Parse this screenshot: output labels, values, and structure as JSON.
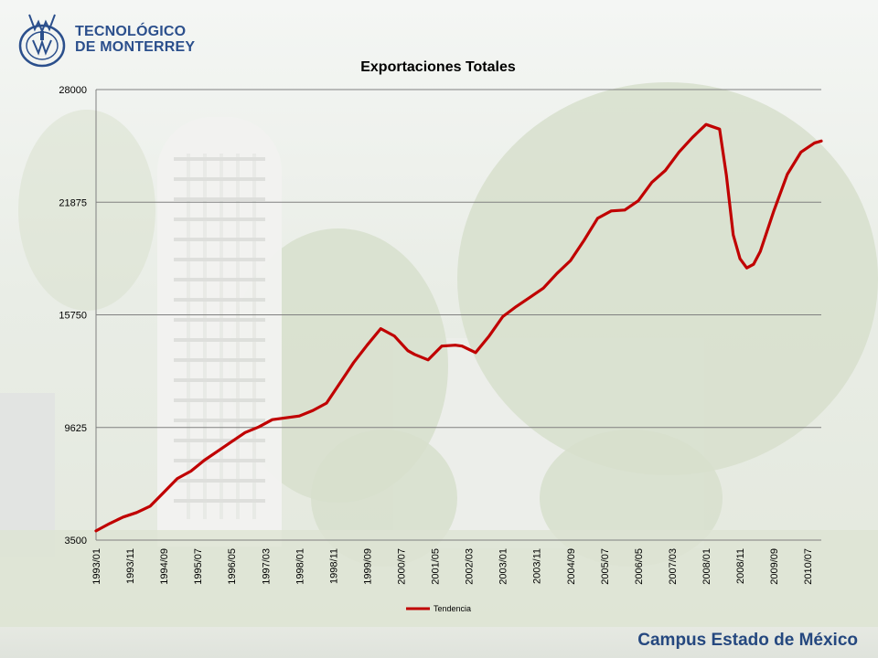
{
  "header": {
    "logo_line1": "TECNOLÓGICO",
    "logo_line2": "DE MONTERREY"
  },
  "footer": {
    "campus": "Campus Estado de México"
  },
  "colors": {
    "series": "#c00000",
    "grid": "#808080",
    "brand": "#2b4f8c"
  },
  "chart_data": {
    "type": "line",
    "title": "Exportaciones Totales",
    "xlabel": "",
    "ylabel": "",
    "ylim": [
      3500,
      28000
    ],
    "yticks": [
      3500,
      9625,
      15750,
      21875,
      28000
    ],
    "x_tick_labels": [
      "1993/01",
      "1993/11",
      "1994/09",
      "1995/07",
      "1996/05",
      "1997/03",
      "1998/01",
      "1998/11",
      "1999/09",
      "2000/07",
      "2001/05",
      "2002/03",
      "2003/01",
      "2003/11",
      "2004/09",
      "2005/07",
      "2006/05",
      "2007/03",
      "2008/01",
      "2008/11",
      "2009/09",
      "2010/07"
    ],
    "x_range": [
      "1993-01",
      "2010-11"
    ],
    "grid": true,
    "legend_position": "bottom",
    "series": [
      {
        "name": "Tendencia",
        "x": [
          "1993-01",
          "1993-05",
          "1993-09",
          "1994-01",
          "1994-05",
          "1994-09",
          "1995-01",
          "1995-05",
          "1995-09",
          "1996-01",
          "1996-05",
          "1996-09",
          "1997-01",
          "1997-05",
          "1997-09",
          "1998-01",
          "1998-05",
          "1998-09",
          "1999-01",
          "1999-05",
          "1999-09",
          "2000-01",
          "2000-05",
          "2000-09",
          "2000-11",
          "2001-03",
          "2001-07",
          "2001-11",
          "2002-01",
          "2002-05",
          "2002-09",
          "2003-01",
          "2003-05",
          "2003-09",
          "2004-01",
          "2004-05",
          "2004-09",
          "2005-01",
          "2005-05",
          "2005-09",
          "2006-01",
          "2006-05",
          "2006-09",
          "2007-01",
          "2007-05",
          "2007-09",
          "2008-01",
          "2008-05",
          "2008-07",
          "2008-09",
          "2008-11",
          "2009-01",
          "2009-03",
          "2009-05",
          "2009-09",
          "2010-01",
          "2010-05",
          "2010-09",
          "2010-11"
        ],
        "values": [
          4000,
          4400,
          4750,
          5000,
          5350,
          6100,
          6850,
          7250,
          7850,
          8350,
          8850,
          9350,
          9650,
          10050,
          10150,
          10250,
          10550,
          10950,
          12050,
          13150,
          14100,
          15000,
          14600,
          13800,
          13600,
          13300,
          14050,
          14100,
          14050,
          13700,
          14600,
          15650,
          16200,
          16700,
          17200,
          18000,
          18700,
          19800,
          21000,
          21400,
          21450,
          21950,
          22950,
          23600,
          24600,
          25400,
          26100,
          25850,
          23350,
          20100,
          18800,
          18300,
          18500,
          19200,
          21400,
          23400,
          24600,
          25100,
          25200
        ]
      }
    ]
  }
}
